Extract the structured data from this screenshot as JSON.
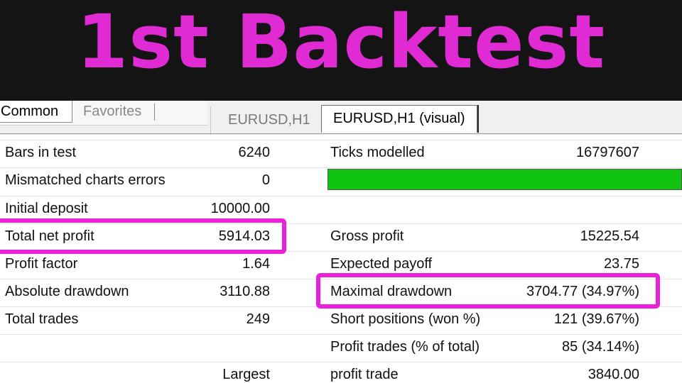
{
  "banner": {
    "title": "1st Backtest"
  },
  "tabs": {
    "common": "Common",
    "favorites": "Favorites",
    "eurusd": "EURUSD,H1",
    "visual": "EURUSD,H1 (visual)"
  },
  "stats": {
    "bars_in_test": {
      "label": "Bars in test",
      "value": "6240"
    },
    "mismatched": {
      "label": "Mismatched charts errors",
      "value": "0"
    },
    "initial_deposit": {
      "label": "Initial deposit",
      "value": "10000.00"
    },
    "total_net_profit": {
      "label": "Total net profit",
      "value": "5914.03"
    },
    "profit_factor": {
      "label": "Profit factor",
      "value": "1.64"
    },
    "absolute_drawdown": {
      "label": "Absolute drawdown",
      "value": "3110.88"
    },
    "total_trades": {
      "label": "Total trades",
      "value": "249"
    },
    "largest": {
      "label": "Largest"
    },
    "ticks_modelled": {
      "label": "Ticks modelled",
      "value": "16797607"
    },
    "gross_profit": {
      "label": "Gross profit",
      "value": "15225.54"
    },
    "expected_payoff": {
      "label": "Expected payoff",
      "value": "23.75"
    },
    "maximal_drawdown": {
      "label": "Maximal drawdown",
      "value": "3704.77 (34.97%)"
    },
    "short_positions": {
      "label": "Short positions (won %)",
      "value": "121 (39.67%)"
    },
    "profit_trades": {
      "label": "Profit trades (% of total)",
      "value": "85 (34.14%)"
    },
    "profit_trade": {
      "label": "profit trade",
      "value": "3840.00"
    }
  },
  "modelling_quality_progress": 1.0,
  "colors": {
    "accent": "#e02bd4",
    "highlight": "#ec20d8",
    "progress": "#0fc30f",
    "banner_bg": "#141414"
  }
}
